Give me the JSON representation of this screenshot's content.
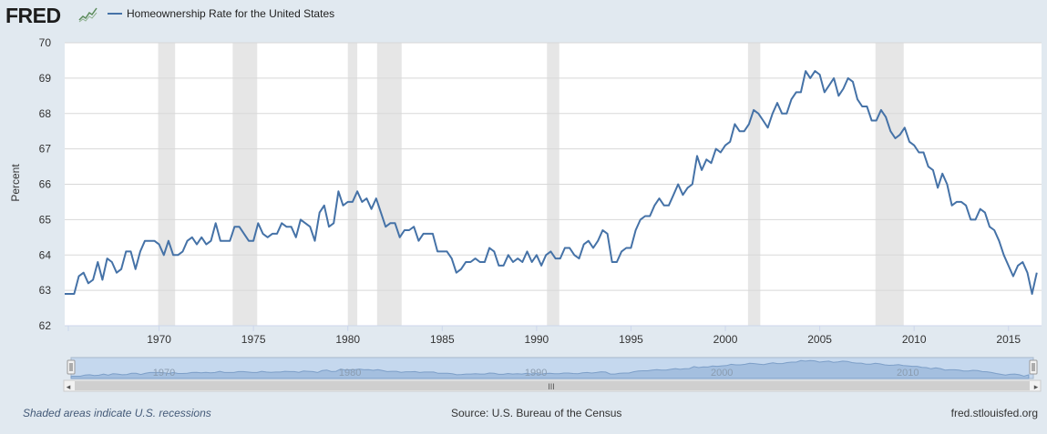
{
  "header": {
    "logo_text": "FRED",
    "logo_icon": "chart-line-icon",
    "legend_label": "Homeownership Rate for the United States",
    "series_color": "#4572a7"
  },
  "chart_data": {
    "type": "line",
    "title": "",
    "xlabel": "",
    "ylabel": "Percent",
    "ylim": [
      62,
      70
    ],
    "xlim": [
      1965,
      2016.75
    ],
    "yticks": [
      "62",
      "63",
      "64",
      "65",
      "66",
      "67",
      "68",
      "69",
      "70"
    ],
    "xticks": [
      "1970",
      "1975",
      "1980",
      "1985",
      "1990",
      "1995",
      "2000",
      "2005",
      "2010",
      "2015"
    ],
    "grid": true,
    "recessions": [
      [
        1969.95,
        1970.85
      ],
      [
        1973.9,
        1975.2
      ],
      [
        1980.0,
        1980.5
      ],
      [
        1981.55,
        1982.85
      ],
      [
        1990.55,
        1991.2
      ],
      [
        2001.2,
        2001.85
      ],
      [
        2007.95,
        2009.45
      ]
    ],
    "series": [
      {
        "name": "Homeownership Rate for the United States",
        "x": [
          1965.0,
          1965.25,
          1965.5,
          1965.75,
          1966.0,
          1966.25,
          1966.5,
          1966.75,
          1967.0,
          1967.25,
          1967.5,
          1967.75,
          1968.0,
          1968.25,
          1968.5,
          1968.75,
          1969.0,
          1969.25,
          1969.5,
          1969.75,
          1970.0,
          1970.25,
          1970.5,
          1970.75,
          1971.0,
          1971.25,
          1971.5,
          1971.75,
          1972.0,
          1972.25,
          1972.5,
          1972.75,
          1973.0,
          1973.25,
          1973.5,
          1973.75,
          1974.0,
          1974.25,
          1974.5,
          1974.75,
          1975.0,
          1975.25,
          1975.5,
          1975.75,
          1976.0,
          1976.25,
          1976.5,
          1976.75,
          1977.0,
          1977.25,
          1977.5,
          1977.75,
          1978.0,
          1978.25,
          1978.5,
          1978.75,
          1979.0,
          1979.25,
          1979.5,
          1979.75,
          1980.0,
          1980.25,
          1980.5,
          1980.75,
          1981.0,
          1981.25,
          1981.5,
          1981.75,
          1982.0,
          1982.25,
          1982.5,
          1982.75,
          1983.0,
          1983.25,
          1983.5,
          1983.75,
          1984.0,
          1984.25,
          1984.5,
          1984.75,
          1985.0,
          1985.25,
          1985.5,
          1985.75,
          1986.0,
          1986.25,
          1986.5,
          1986.75,
          1987.0,
          1987.25,
          1987.5,
          1987.75,
          1988.0,
          1988.25,
          1988.5,
          1988.75,
          1989.0,
          1989.25,
          1989.5,
          1989.75,
          1990.0,
          1990.25,
          1990.5,
          1990.75,
          1991.0,
          1991.25,
          1991.5,
          1991.75,
          1992.0,
          1992.25,
          1992.5,
          1992.75,
          1993.0,
          1993.25,
          1993.5,
          1993.75,
          1994.0,
          1994.25,
          1994.5,
          1994.75,
          1995.0,
          1995.25,
          1995.5,
          1995.75,
          1996.0,
          1996.25,
          1996.5,
          1996.75,
          1997.0,
          1997.25,
          1997.5,
          1997.75,
          1998.0,
          1998.25,
          1998.5,
          1998.75,
          1999.0,
          1999.25,
          1999.5,
          1999.75,
          2000.0,
          2000.25,
          2000.5,
          2000.75,
          2001.0,
          2001.25,
          2001.5,
          2001.75,
          2002.0,
          2002.25,
          2002.5,
          2002.75,
          2003.0,
          2003.25,
          2003.5,
          2003.75,
          2004.0,
          2004.25,
          2004.5,
          2004.75,
          2005.0,
          2005.25,
          2005.5,
          2005.75,
          2006.0,
          2006.25,
          2006.5,
          2006.75,
          2007.0,
          2007.25,
          2007.5,
          2007.75,
          2008.0,
          2008.25,
          2008.5,
          2008.75,
          2009.0,
          2009.25,
          2009.5,
          2009.75,
          2010.0,
          2010.25,
          2010.5,
          2010.75,
          2011.0,
          2011.25,
          2011.5,
          2011.75,
          2012.0,
          2012.25,
          2012.5,
          2012.75,
          2013.0,
          2013.25,
          2013.5,
          2013.75,
          2014.0,
          2014.25,
          2014.5,
          2014.75,
          2015.0,
          2015.25,
          2015.5,
          2015.75,
          2016.0,
          2016.25,
          2016.5
        ],
        "values": [
          62.9,
          62.9,
          62.9,
          63.4,
          63.5,
          63.2,
          63.3,
          63.8,
          63.3,
          63.9,
          63.8,
          63.5,
          63.6,
          64.1,
          64.1,
          63.6,
          64.1,
          64.4,
          64.4,
          64.4,
          64.3,
          64.0,
          64.4,
          64.0,
          64.0,
          64.1,
          64.4,
          64.5,
          64.3,
          64.5,
          64.3,
          64.4,
          64.9,
          64.4,
          64.4,
          64.4,
          64.8,
          64.8,
          64.6,
          64.4,
          64.4,
          64.9,
          64.6,
          64.5,
          64.6,
          64.6,
          64.9,
          64.8,
          64.8,
          64.5,
          65.0,
          64.9,
          64.8,
          64.4,
          65.2,
          65.4,
          64.8,
          64.9,
          65.8,
          65.4,
          65.5,
          65.5,
          65.8,
          65.5,
          65.6,
          65.3,
          65.6,
          65.2,
          64.8,
          64.9,
          64.9,
          64.5,
          64.7,
          64.7,
          64.8,
          64.4,
          64.6,
          64.6,
          64.6,
          64.1,
          64.1,
          64.1,
          63.9,
          63.5,
          63.6,
          63.8,
          63.8,
          63.9,
          63.8,
          63.8,
          64.2,
          64.1,
          63.7,
          63.7,
          64.0,
          63.8,
          63.9,
          63.8,
          64.1,
          63.8,
          64.0,
          63.7,
          64.0,
          64.1,
          63.9,
          63.9,
          64.2,
          64.2,
          64.0,
          63.9,
          64.3,
          64.4,
          64.2,
          64.4,
          64.7,
          64.6,
          63.8,
          63.8,
          64.1,
          64.2,
          64.2,
          64.7,
          65.0,
          65.1,
          65.1,
          65.4,
          65.6,
          65.4,
          65.4,
          65.7,
          66.0,
          65.7,
          65.9,
          66.0,
          66.8,
          66.4,
          66.7,
          66.6,
          67.0,
          66.9,
          67.1,
          67.2,
          67.7,
          67.5,
          67.5,
          67.7,
          68.1,
          68.0,
          67.8,
          67.6,
          68.0,
          68.3,
          68.0,
          68.0,
          68.4,
          68.6,
          68.6,
          69.2,
          69.0,
          69.2,
          69.1,
          68.6,
          68.8,
          69.0,
          68.5,
          68.7,
          69.0,
          68.9,
          68.4,
          68.2,
          68.2,
          67.8,
          67.8,
          68.1,
          67.9,
          67.5,
          67.3,
          67.4,
          67.6,
          67.2,
          67.1,
          66.9,
          66.9,
          66.5,
          66.4,
          65.9,
          66.3,
          66.0,
          65.4,
          65.5,
          65.5,
          65.4,
          65.0,
          65.0,
          65.3,
          65.2,
          64.8,
          64.7,
          64.4,
          64.0,
          63.7,
          63.4,
          63.7,
          63.8,
          63.5,
          62.9,
          63.5
        ]
      }
    ]
  },
  "navigator": {
    "labels": [
      "1970",
      "1980",
      "1990",
      "2000",
      "2010"
    ],
    "scroll_grip": "III",
    "left_arrow": "◂",
    "right_arrow": "▸"
  },
  "footer": {
    "recession_note": "Shaded areas indicate U.S. recessions",
    "source": "Source: U.S. Bureau of the Census",
    "site": "fred.stlouisfed.org"
  }
}
